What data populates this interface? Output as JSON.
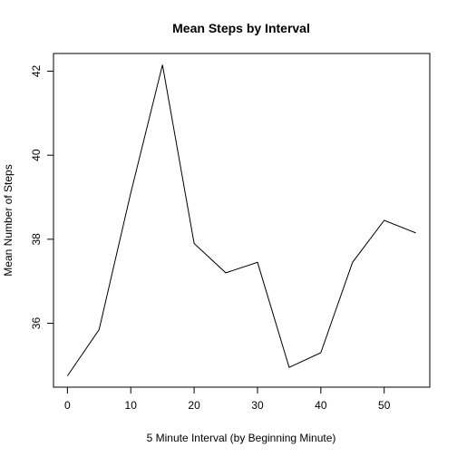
{
  "chart_data": {
    "type": "line",
    "title": "Mean Steps by Interval",
    "xlabel": "5 Minute Interval (by Beginning Minute)",
    "ylabel": "Mean Number of Steps",
    "x": [
      0,
      5,
      10,
      15,
      20,
      25,
      30,
      35,
      40,
      45,
      50,
      55
    ],
    "series": [
      {
        "values": [
          34.75,
          35.85,
          39.1,
          42.15,
          37.9,
          37.2,
          37.45,
          34.95,
          35.3,
          37.45,
          38.45,
          38.15
        ],
        "color": "#000000"
      }
    ],
    "xlim": [
      -2.2,
      57.2
    ],
    "ylim": [
      34.48,
      42.42
    ],
    "xticks": [
      0,
      10,
      20,
      30,
      40,
      50
    ],
    "yticks": [
      36,
      38,
      40,
      42
    ],
    "grid": false,
    "legend": "none"
  }
}
